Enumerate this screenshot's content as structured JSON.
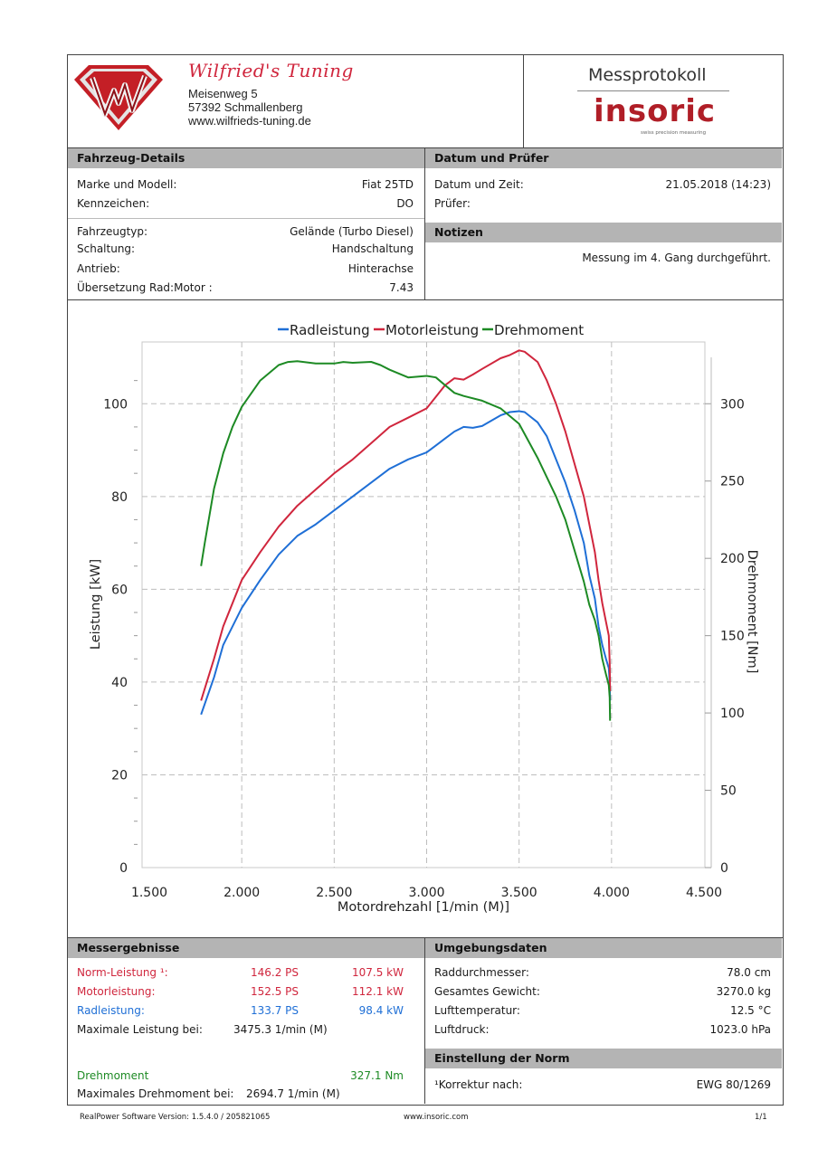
{
  "header": {
    "company_name": "Wilfried's Tuning",
    "address_line1": "Meisenweg 5",
    "address_line2": "57392 Schmallenberg",
    "website": "www.wilfrieds-tuning.de",
    "protocol_title": "Messprotokoll",
    "brand_logo_text": "insoric",
    "brand_tagline": "swiss precision measuring"
  },
  "vehicle": {
    "title": "Fahrzeug-Details",
    "rows": [
      {
        "label": "Marke und Modell:",
        "value": "Fiat 25TD"
      },
      {
        "label": "Kennzeichen:",
        "value": "DO"
      },
      {
        "label": "Fahrzeugtyp:",
        "value": "Gelände (Turbo Diesel)"
      },
      {
        "label": "Schaltung:",
        "value": "Handschaltung"
      },
      {
        "label": "Antrieb:",
        "value": "Hinterachse"
      },
      {
        "label": "Übersetzung Rad:Motor :",
        "value": "7.43"
      }
    ]
  },
  "date_tester": {
    "title": "Datum und Prüfer",
    "date_label": "Datum und Zeit:",
    "date_value": "21.05.2018 (14:23)",
    "tester_label": "Prüfer:"
  },
  "notes": {
    "title": "Notizen",
    "text": "Messung im 4. Gang durchgeführt."
  },
  "chart_data": {
    "type": "line",
    "xlabel": "Motordrehzahl [1/min (M)]",
    "ylabel": "Leistung [kW]",
    "y2label": "Drehmoment [Nm]",
    "xlim": [
      1500,
      4500
    ],
    "ylim": [
      0,
      110
    ],
    "y2lim": [
      0,
      330
    ],
    "x_ticks": [
      "1.500",
      "2.000",
      "2.500",
      "3.000",
      "3.500",
      "4.000",
      "4.500"
    ],
    "y_ticks": [
      "0",
      "20",
      "40",
      "60",
      "80",
      "100"
    ],
    "y2_ticks": [
      "0",
      "50",
      "100",
      "150",
      "200",
      "250",
      "300"
    ],
    "legend_position": "top",
    "colors": {
      "Radleistung": "#1f6fd6",
      "Motorleistung": "#d0263d",
      "Drehmoment": "#1d8a24"
    },
    "series": [
      {
        "name": "Radleistung",
        "axis": "left",
        "points": [
          [
            1780,
            33
          ],
          [
            1850,
            41
          ],
          [
            1900,
            48
          ],
          [
            2000,
            56
          ],
          [
            2100,
            62
          ],
          [
            2200,
            67.5
          ],
          [
            2300,
            71.5
          ],
          [
            2400,
            74
          ],
          [
            2500,
            77
          ],
          [
            2600,
            80
          ],
          [
            2700,
            83
          ],
          [
            2800,
            86
          ],
          [
            2900,
            88
          ],
          [
            3000,
            89.5
          ],
          [
            3050,
            91
          ],
          [
            3100,
            92.5
          ],
          [
            3150,
            94
          ],
          [
            3200,
            95
          ],
          [
            3250,
            94.8
          ],
          [
            3300,
            95.2
          ],
          [
            3400,
            97.5
          ],
          [
            3450,
            98.2
          ],
          [
            3500,
            98.4
          ],
          [
            3530,
            98.2
          ],
          [
            3600,
            96
          ],
          [
            3650,
            93
          ],
          [
            3700,
            88
          ],
          [
            3750,
            83
          ],
          [
            3800,
            77
          ],
          [
            3850,
            70
          ],
          [
            3880,
            63
          ],
          [
            3910,
            58
          ],
          [
            3930,
            52
          ],
          [
            3950,
            48
          ],
          [
            3970,
            45
          ],
          [
            3985,
            43
          ],
          [
            3990,
            40
          ],
          [
            3992,
            36
          ]
        ]
      },
      {
        "name": "Motorleistung",
        "axis": "left",
        "points": [
          [
            1780,
            36
          ],
          [
            1850,
            45
          ],
          [
            1900,
            52
          ],
          [
            2000,
            62
          ],
          [
            2100,
            68
          ],
          [
            2200,
            73.5
          ],
          [
            2300,
            78
          ],
          [
            2400,
            81.5
          ],
          [
            2500,
            85
          ],
          [
            2600,
            88
          ],
          [
            2700,
            91.5
          ],
          [
            2800,
            95
          ],
          [
            2900,
            97
          ],
          [
            3000,
            99
          ],
          [
            3050,
            101.5
          ],
          [
            3100,
            104
          ],
          [
            3150,
            105.5
          ],
          [
            3200,
            105.2
          ],
          [
            3250,
            106.3
          ],
          [
            3300,
            107.5
          ],
          [
            3400,
            109.8
          ],
          [
            3450,
            110.5
          ],
          [
            3500,
            111.5
          ],
          [
            3530,
            111.2
          ],
          [
            3600,
            109
          ],
          [
            3650,
            105
          ],
          [
            3700,
            100
          ],
          [
            3750,
            94
          ],
          [
            3800,
            87
          ],
          [
            3850,
            80
          ],
          [
            3880,
            74
          ],
          [
            3910,
            68
          ],
          [
            3930,
            62
          ],
          [
            3950,
            57
          ],
          [
            3970,
            53
          ],
          [
            3985,
            50
          ],
          [
            3990,
            44
          ],
          [
            3992,
            38
          ]
        ]
      },
      {
        "name": "Drehmoment",
        "axis": "right",
        "points": [
          [
            1780,
            195
          ],
          [
            1800,
            210
          ],
          [
            1850,
            245
          ],
          [
            1900,
            268
          ],
          [
            1950,
            285
          ],
          [
            2000,
            298
          ],
          [
            2100,
            315
          ],
          [
            2200,
            325
          ],
          [
            2250,
            327
          ],
          [
            2300,
            327.5
          ],
          [
            2400,
            326
          ],
          [
            2500,
            326
          ],
          [
            2550,
            327
          ],
          [
            2600,
            326.5
          ],
          [
            2700,
            327.1
          ],
          [
            2750,
            325
          ],
          [
            2800,
            322
          ],
          [
            2900,
            317
          ],
          [
            3000,
            318
          ],
          [
            3050,
            317
          ],
          [
            3100,
            312
          ],
          [
            3150,
            307
          ],
          [
            3200,
            305
          ],
          [
            3300,
            302
          ],
          [
            3400,
            297
          ],
          [
            3500,
            287
          ],
          [
            3600,
            265
          ],
          [
            3700,
            240
          ],
          [
            3750,
            225
          ],
          [
            3800,
            205
          ],
          [
            3850,
            185
          ],
          [
            3880,
            170
          ],
          [
            3910,
            160
          ],
          [
            3930,
            150
          ],
          [
            3950,
            135
          ],
          [
            3970,
            125
          ],
          [
            3985,
            118
          ],
          [
            3990,
            110
          ],
          [
            3992,
            95
          ]
        ]
      }
    ]
  },
  "results": {
    "title": "Messergebnisse",
    "rows": [
      {
        "label": "Norm-Leistung ¹:",
        "ps": "146.2 PS",
        "kw": "107.5 kW",
        "color": "#d0263d"
      },
      {
        "label": "Motorleistung:",
        "ps": "152.5 PS",
        "kw": "112.1 kW",
        "color": "#d0263d"
      },
      {
        "label": "Radleistung:",
        "ps": "133.7 PS",
        "kw": "98.4 kW",
        "color": "#1f6fd6"
      }
    ],
    "max_power_label": "Maximale Leistung bei:",
    "max_power_value": "3475.3 1/min (M)",
    "torque_label": "Drehmoment",
    "torque_value": "327.1 Nm",
    "max_torque_label": "Maximales Drehmoment bei:",
    "max_torque_value": "2694.7 1/min (M)"
  },
  "environment": {
    "title": "Umgebungsdaten",
    "rows": [
      {
        "label": "Raddurchmesser:",
        "value": "78.0 cm"
      },
      {
        "label": "Gesamtes Gewicht:",
        "value": "3270.0 kg"
      },
      {
        "label": "Lufttemperatur:",
        "value": "12.5 °C"
      },
      {
        "label": "Luftdruck:",
        "value": "1023.0 hPa"
      }
    ]
  },
  "norm": {
    "title": "Einstellung der Norm",
    "label": "¹Korrektur nach:",
    "value": "EWG 80/1269"
  },
  "footer": {
    "software": "RealPower Software Version: 1.5.4.0 / 205821065",
    "url": "www.insoric.com",
    "page": "1/1"
  }
}
